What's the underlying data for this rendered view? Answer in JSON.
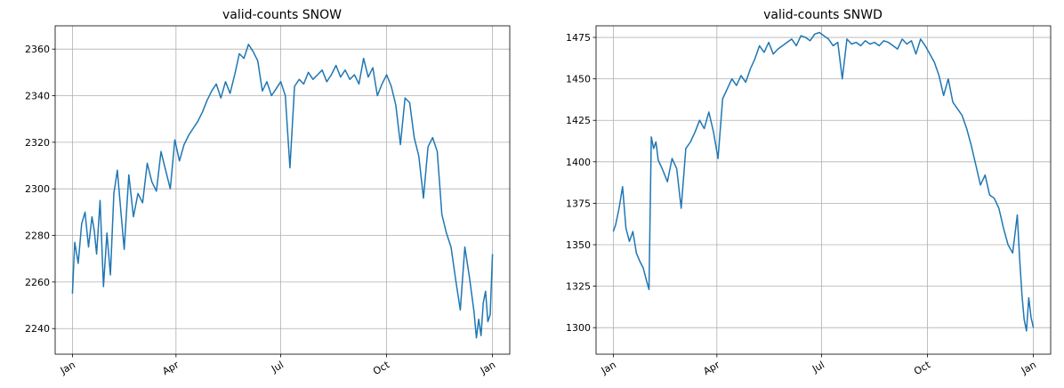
{
  "chart_data": [
    {
      "type": "line",
      "title": "valid-counts SNOW",
      "xlabel": "",
      "ylabel": "",
      "x_ticks": [
        "Jan",
        "Apr",
        "Jul",
        "Oct",
        "Jan"
      ],
      "x_tick_days": [
        1,
        91,
        182,
        274,
        366
      ],
      "xlim": [
        -14,
        381
      ],
      "ylim": [
        2229,
        2370
      ],
      "y_ticks": [
        2240,
        2260,
        2280,
        2300,
        2320,
        2340,
        2360
      ],
      "grid": true,
      "legend": "none",
      "color": "#1f77b4",
      "series": [
        {
          "x": [
            1,
            3,
            6,
            9,
            12,
            15,
            18,
            20,
            22,
            25,
            28,
            31,
            34,
            37,
            40,
            43,
            46,
            50,
            54,
            58,
            62,
            66,
            70,
            74,
            78,
            82,
            86,
            90,
            94,
            98,
            102,
            106,
            110,
            114,
            118,
            122,
            126,
            130,
            134,
            138,
            142,
            146,
            150,
            154,
            158,
            162,
            166,
            170,
            174,
            178,
            182,
            186,
            190,
            194,
            198,
            202,
            206,
            210,
            214,
            218,
            222,
            226,
            230,
            234,
            238,
            242,
            246,
            250,
            254,
            258,
            262,
            266,
            270,
            274,
            278,
            282,
            286,
            290,
            294,
            298,
            302,
            306,
            310,
            314,
            318,
            322,
            326,
            330,
            334,
            338,
            342,
            346,
            350,
            352,
            354,
            356,
            358,
            360,
            362,
            364,
            366
          ],
          "values": [
            2255,
            2277,
            2268,
            2285,
            2290,
            2275,
            2288,
            2282,
            2272,
            2295,
            2258,
            2281,
            2263,
            2298,
            2308,
            2291,
            2274,
            2306,
            2288,
            2298,
            2294,
            2311,
            2303,
            2299,
            2316,
            2308,
            2300,
            2321,
            2312,
            2319,
            2323,
            2326,
            2329,
            2333,
            2338,
            2342,
            2345,
            2339,
            2346,
            2341,
            2349,
            2358,
            2356,
            2362,
            2359,
            2355,
            2342,
            2346,
            2340,
            2343,
            2346,
            2340,
            2309,
            2344,
            2347,
            2345,
            2350,
            2347,
            2349,
            2351,
            2346,
            2349,
            2353,
            2348,
            2351,
            2347,
            2349,
            2345,
            2356,
            2348,
            2352,
            2340,
            2345,
            2349,
            2344,
            2336,
            2319,
            2339,
            2337,
            2322,
            2314,
            2296,
            2318,
            2322,
            2316,
            2289,
            2281,
            2275,
            2261,
            2248,
            2275,
            2262,
            2247,
            2236,
            2244,
            2237,
            2251,
            2256,
            2243,
            2246,
            2272
          ]
        }
      ]
    },
    {
      "type": "line",
      "title": "valid-counts SNWD",
      "xlabel": "",
      "ylabel": "",
      "x_ticks": [
        "Jan",
        "Apr",
        "Jul",
        "Oct",
        "Jan"
      ],
      "x_tick_days": [
        1,
        91,
        182,
        274,
        366
      ],
      "xlim": [
        -14,
        381
      ],
      "ylim": [
        1284,
        1482
      ],
      "y_ticks": [
        1300,
        1325,
        1350,
        1375,
        1400,
        1425,
        1450,
        1475
      ],
      "grid": true,
      "legend": "none",
      "color": "#1f77b4",
      "series": [
        {
          "x": [
            1,
            3,
            6,
            9,
            12,
            15,
            18,
            21,
            24,
            27,
            30,
            32,
            34,
            36,
            38,
            40,
            44,
            48,
            52,
            56,
            60,
            64,
            68,
            72,
            76,
            80,
            84,
            88,
            92,
            96,
            100,
            104,
            108,
            112,
            116,
            120,
            124,
            128,
            132,
            136,
            140,
            144,
            148,
            152,
            156,
            160,
            164,
            168,
            172,
            176,
            180,
            184,
            188,
            192,
            196,
            200,
            204,
            208,
            212,
            216,
            220,
            224,
            228,
            232,
            236,
            240,
            244,
            248,
            252,
            256,
            260,
            264,
            268,
            272,
            276,
            280,
            284,
            288,
            292,
            296,
            300,
            304,
            308,
            312,
            316,
            320,
            324,
            328,
            332,
            336,
            340,
            344,
            348,
            352,
            354,
            356,
            358,
            360,
            362,
            364,
            366
          ],
          "values": [
            1358,
            1362,
            1372,
            1385,
            1360,
            1352,
            1358,
            1345,
            1340,
            1336,
            1328,
            1323,
            1415,
            1408,
            1412,
            1401,
            1395,
            1388,
            1402,
            1396,
            1372,
            1408,
            1412,
            1418,
            1425,
            1420,
            1430,
            1418,
            1402,
            1438,
            1444,
            1450,
            1446,
            1452,
            1448,
            1456,
            1462,
            1470,
            1466,
            1472,
            1465,
            1468,
            1470,
            1472,
            1474,
            1470,
            1476,
            1475,
            1473,
            1477,
            1478,
            1476,
            1474,
            1470,
            1472,
            1450,
            1474,
            1471,
            1472,
            1470,
            1473,
            1471,
            1472,
            1470,
            1473,
            1472,
            1470,
            1468,
            1474,
            1471,
            1473,
            1465,
            1474,
            1470,
            1465,
            1460,
            1452,
            1440,
            1450,
            1436,
            1432,
            1428,
            1420,
            1410,
            1398,
            1386,
            1392,
            1380,
            1378,
            1372,
            1360,
            1350,
            1345,
            1368,
            1342,
            1320,
            1305,
            1298,
            1318,
            1306,
            1300
          ]
        }
      ]
    }
  ]
}
